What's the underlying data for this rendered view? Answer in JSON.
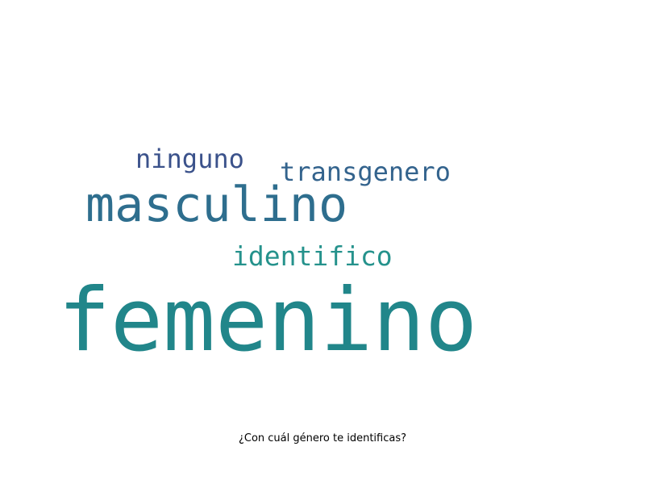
{
  "chart_data": {
    "type": "wordcloud",
    "title": "",
    "caption": "¿Con cuál género te identificas?",
    "words": [
      {
        "text": "femenino",
        "weight": 1.0,
        "color": "#21868a"
      },
      {
        "text": "masculino",
        "weight": 0.58,
        "color": "#2e6e8e"
      },
      {
        "text": "identifico",
        "weight": 0.36,
        "color": "#25928c"
      },
      {
        "text": "transgenero",
        "weight": 0.34,
        "color": "#33638d"
      },
      {
        "text": "ninguno",
        "weight": 0.34,
        "color": "#3b528b"
      }
    ]
  }
}
